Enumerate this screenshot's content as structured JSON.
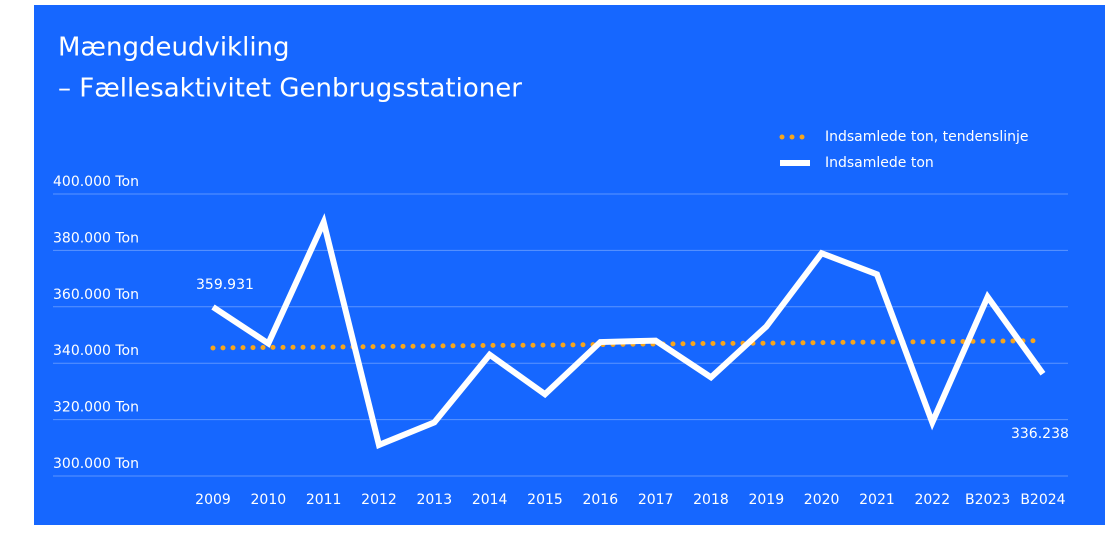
{
  "chart_data": {
    "type": "line",
    "title": "Mængdeudvikling",
    "subtitle": "– Fællesaktivitet Genbrugsstationer",
    "categories": [
      "2009",
      "2010",
      "2011",
      "2012",
      "2013",
      "2014",
      "2015",
      "2016",
      "2017",
      "2018",
      "2019",
      "2020",
      "2021",
      "2022",
      "B2023",
      "B2024"
    ],
    "series": [
      {
        "name": "Indsamlede ton, tendenslinje",
        "color": "#f7a51c",
        "style": "dotted",
        "values": [
          345400,
          345600,
          345700,
          345900,
          346100,
          346300,
          346400,
          346600,
          346800,
          347000,
          347100,
          347300,
          347500,
          347600,
          347800,
          348000
        ]
      },
      {
        "name": "Indsamlede ton",
        "color": "#ffffff",
        "style": "solid",
        "values": [
          359931,
          347000,
          390000,
          311000,
          319000,
          343000,
          329000,
          347500,
          348000,
          335000,
          353000,
          379000,
          371500,
          319000,
          363500,
          336238
        ],
        "value_labels": [
          "359.931",
          null,
          null,
          null,
          null,
          null,
          null,
          null,
          null,
          null,
          null,
          null,
          null,
          null,
          null,
          "336.238"
        ]
      }
    ],
    "ylim": [
      300000,
      400000
    ],
    "yticks": [
      {
        "value": 300000,
        "label": "300.000 Ton"
      },
      {
        "value": 320000,
        "label": "320.000 Ton"
      },
      {
        "value": 340000,
        "label": "340.000 Ton"
      },
      {
        "value": 360000,
        "label": "360.000 Ton"
      },
      {
        "value": 380000,
        "label": "380.000 Ton"
      },
      {
        "value": 400000,
        "label": "400.000 Ton"
      }
    ],
    "grid": true,
    "legend": "top-right",
    "background": "#1667ff"
  }
}
